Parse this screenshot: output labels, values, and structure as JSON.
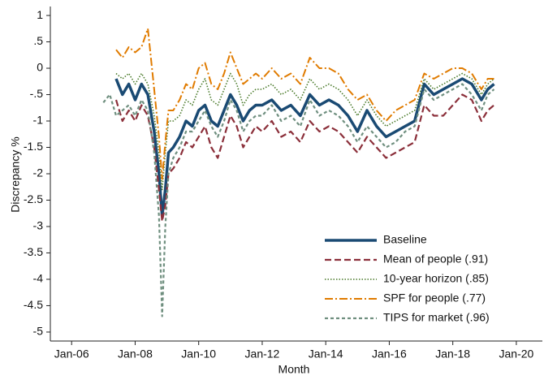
{
  "chart_data": {
    "type": "line",
    "x_label": "Month",
    "y_label": "Discrepancy %",
    "x": [
      2007.0,
      2007.2,
      2007.4,
      2007.6,
      2007.8,
      2008.0,
      2008.2,
      2008.4,
      2008.6,
      2008.75,
      2008.85,
      2008.95,
      2009.05,
      2009.2,
      2009.4,
      2009.6,
      2009.8,
      2010.0,
      2010.2,
      2010.4,
      2010.6,
      2010.8,
      2011.0,
      2011.2,
      2011.4,
      2011.6,
      2011.8,
      2012.0,
      2012.3,
      2012.6,
      2012.9,
      2013.2,
      2013.5,
      2013.8,
      2014.1,
      2014.4,
      2014.7,
      2015.0,
      2015.3,
      2015.6,
      2015.9,
      2016.2,
      2016.5,
      2016.8,
      2017.1,
      2017.4,
      2017.7,
      2018.0,
      2018.3,
      2018.6,
      2018.9,
      2019.1,
      2019.3
    ],
    "series": [
      {
        "name": "Baseline",
        "color": "#1a4a73",
        "dash": "solid",
        "values": [
          null,
          null,
          -0.2,
          -0.5,
          -0.3,
          -0.6,
          -0.3,
          -0.5,
          -1.2,
          -2.0,
          -2.8,
          -2.3,
          -1.6,
          -1.5,
          -1.3,
          -1.0,
          -1.1,
          -0.8,
          -0.7,
          -1.0,
          -1.1,
          -0.8,
          -0.5,
          -0.7,
          -1.0,
          -0.8,
          -0.7,
          -0.7,
          -0.6,
          -0.8,
          -0.7,
          -0.9,
          -0.5,
          -0.7,
          -0.6,
          -0.7,
          -0.9,
          -1.2,
          -0.8,
          -1.1,
          -1.3,
          -1.2,
          -1.1,
          -1.0,
          -0.3,
          -0.5,
          -0.4,
          -0.3,
          -0.2,
          -0.3,
          -0.6,
          -0.4,
          -0.3
        ]
      },
      {
        "name": "Mean of people (.91)",
        "color": "#8b2f3a",
        "dash": "dash",
        "values": [
          null,
          null,
          -0.6,
          -1.0,
          -0.8,
          -1.0,
          -0.7,
          -0.9,
          -1.5,
          -2.3,
          -2.9,
          -2.6,
          -2.0,
          -1.9,
          -1.7,
          -1.4,
          -1.5,
          -1.3,
          -1.1,
          -1.5,
          -1.7,
          -1.3,
          -0.9,
          -1.1,
          -1.5,
          -1.3,
          -1.1,
          -1.2,
          -1.0,
          -1.3,
          -1.2,
          -1.4,
          -1.0,
          -1.2,
          -1.1,
          -1.2,
          -1.4,
          -1.6,
          -1.3,
          -1.5,
          -1.7,
          -1.6,
          -1.5,
          -1.4,
          -0.7,
          -0.9,
          -0.9,
          -0.7,
          -0.5,
          -0.6,
          -1.0,
          -0.8,
          -0.7
        ]
      },
      {
        "name": "10-year horizon (.85)",
        "color": "#4a7a2a",
        "dash": "dot",
        "values": [
          null,
          null,
          -0.1,
          -0.2,
          -0.1,
          -0.3,
          -0.1,
          -0.3,
          -0.9,
          -1.6,
          -2.3,
          -1.6,
          -1.0,
          -1.0,
          -0.9,
          -0.6,
          -0.7,
          -0.4,
          -0.2,
          -0.6,
          -0.7,
          -0.4,
          -0.1,
          -0.3,
          -0.7,
          -0.5,
          -0.4,
          -0.4,
          -0.3,
          -0.5,
          -0.4,
          -0.6,
          -0.2,
          -0.4,
          -0.3,
          -0.4,
          -0.6,
          -0.9,
          -0.6,
          -0.9,
          -1.1,
          -1.0,
          -0.9,
          -0.8,
          -0.2,
          -0.4,
          -0.3,
          -0.2,
          -0.1,
          -0.2,
          -0.5,
          -0.3,
          -0.2
        ]
      },
      {
        "name": "SPF for people (.77)",
        "color": "#e07b00",
        "dash": "dashdot",
        "values": [
          null,
          null,
          0.35,
          0.2,
          0.4,
          0.3,
          0.4,
          0.75,
          -0.4,
          -1.3,
          -2.1,
          -1.4,
          -0.8,
          -0.8,
          -0.6,
          -0.3,
          -0.4,
          0.0,
          0.1,
          -0.3,
          -0.4,
          -0.1,
          0.3,
          0.0,
          -0.3,
          -0.2,
          -0.1,
          -0.2,
          0.0,
          -0.2,
          -0.1,
          -0.3,
          0.2,
          0.0,
          0.0,
          -0.1,
          -0.4,
          -0.6,
          -0.5,
          -0.8,
          -1.0,
          -0.8,
          -0.7,
          -0.6,
          -0.1,
          -0.2,
          -0.1,
          0.0,
          0.0,
          -0.1,
          -0.4,
          -0.2,
          -0.2
        ]
      },
      {
        "name": "TIPS for market (.96)",
        "color": "#6f8f7f",
        "dash": "shortdash",
        "values": [
          -0.65,
          -0.5,
          -0.9,
          -0.8,
          -0.7,
          -0.9,
          -0.6,
          -0.8,
          -1.6,
          -2.8,
          -4.7,
          -3.0,
          -2.0,
          -1.7,
          -1.5,
          -1.2,
          -1.2,
          -1.0,
          -0.8,
          -1.1,
          -1.3,
          -1.0,
          -0.6,
          -0.8,
          -1.2,
          -1.0,
          -0.9,
          -0.9,
          -0.7,
          -1.0,
          -0.9,
          -1.1,
          -0.6,
          -0.9,
          -0.8,
          -0.9,
          -1.1,
          -1.4,
          -1.1,
          -1.3,
          -1.5,
          -1.4,
          -1.2,
          -1.1,
          -0.4,
          -0.6,
          -0.5,
          -0.4,
          -0.3,
          -0.5,
          -0.8,
          -0.5,
          -0.4
        ]
      }
    ],
    "xlim": [
      2005.33,
      2020.82
    ],
    "ylim": [
      -5.17,
      1.17
    ],
    "xticks": [
      {
        "value": 2006,
        "label": "Jan-06"
      },
      {
        "value": 2008,
        "label": "Jan-08"
      },
      {
        "value": 2010,
        "label": "Jan-10"
      },
      {
        "value": 2012,
        "label": "Jan-12"
      },
      {
        "value": 2014,
        "label": "Jan-14"
      },
      {
        "value": 2016,
        "label": "Jan-16"
      },
      {
        "value": 2018,
        "label": "Jan-18"
      },
      {
        "value": 2020,
        "label": "Jan-20"
      }
    ],
    "yticks": [
      1,
      {
        "value": 0.5,
        "label": ".5"
      },
      0,
      {
        "value": -0.5,
        "label": "-.5"
      },
      -1,
      -1.5,
      -2,
      -2.5,
      -3,
      -3.5,
      -4,
      -4.5,
      -5
    ],
    "grid": false,
    "legend": "lower right"
  }
}
